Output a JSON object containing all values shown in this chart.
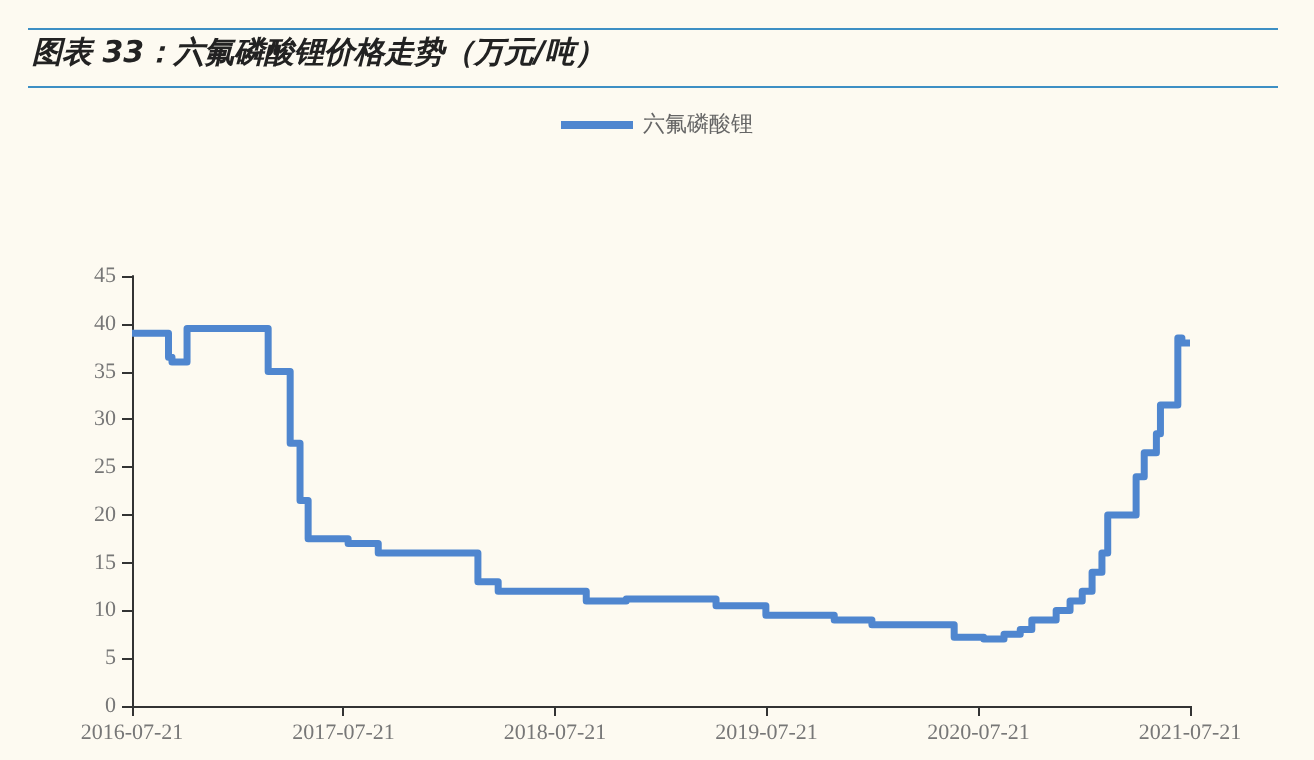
{
  "chart_data": {
    "type": "step",
    "title": "图表 33：六氟磷酸锂价格走势（万元/吨）",
    "x": [
      "2016-07-21",
      "2016-09-22",
      "2016-09-28",
      "2016-10-24",
      "2017-03-13",
      "2017-04-20",
      "2017-05-07",
      "2017-05-21",
      "2017-07-29",
      "2017-09-19",
      "2018-03-10",
      "2018-04-14",
      "2018-09-13",
      "2018-11-21",
      "2019-04-25",
      "2019-07-20",
      "2019-11-15",
      "2020-01-19",
      "2020-06-09",
      "2020-07-30",
      "2020-09-03",
      "2020-10-01",
      "2020-10-21",
      "2020-12-02",
      "2020-12-26",
      "2021-01-16",
      "2021-02-02",
      "2021-02-19",
      "2021-03-01",
      "2021-04-19",
      "2021-05-03",
      "2021-05-24",
      "2021-05-31",
      "2021-06-30",
      "2021-07-07",
      "2021-07-21"
    ],
    "series": [
      {
        "name": "六氟磷酸锂",
        "color": "#4f86cf",
        "values": [
          39,
          36.5,
          36,
          39.5,
          35,
          27.5,
          21.5,
          17.5,
          17,
          16,
          13,
          12,
          11,
          11.2,
          10.5,
          9.5,
          9,
          8.5,
          7.2,
          7,
          7.5,
          8,
          9,
          10,
          11,
          12,
          14,
          16,
          20,
          24,
          26.5,
          28.5,
          31.5,
          38.5,
          38,
          38
        ]
      }
    ],
    "xlim": [
      "2016-07-21",
      "2021-07-21"
    ],
    "xticks": [
      "2016-07-21",
      "2017-07-21",
      "2018-07-21",
      "2019-07-21",
      "2020-07-21",
      "2021-07-21"
    ],
    "ylim": [
      0,
      45
    ],
    "yticks": [
      0,
      5,
      10,
      15,
      20,
      25,
      30,
      35,
      40,
      45
    ],
    "grid": false,
    "legend": "top",
    "marker": "none",
    "line_style": "solid"
  }
}
